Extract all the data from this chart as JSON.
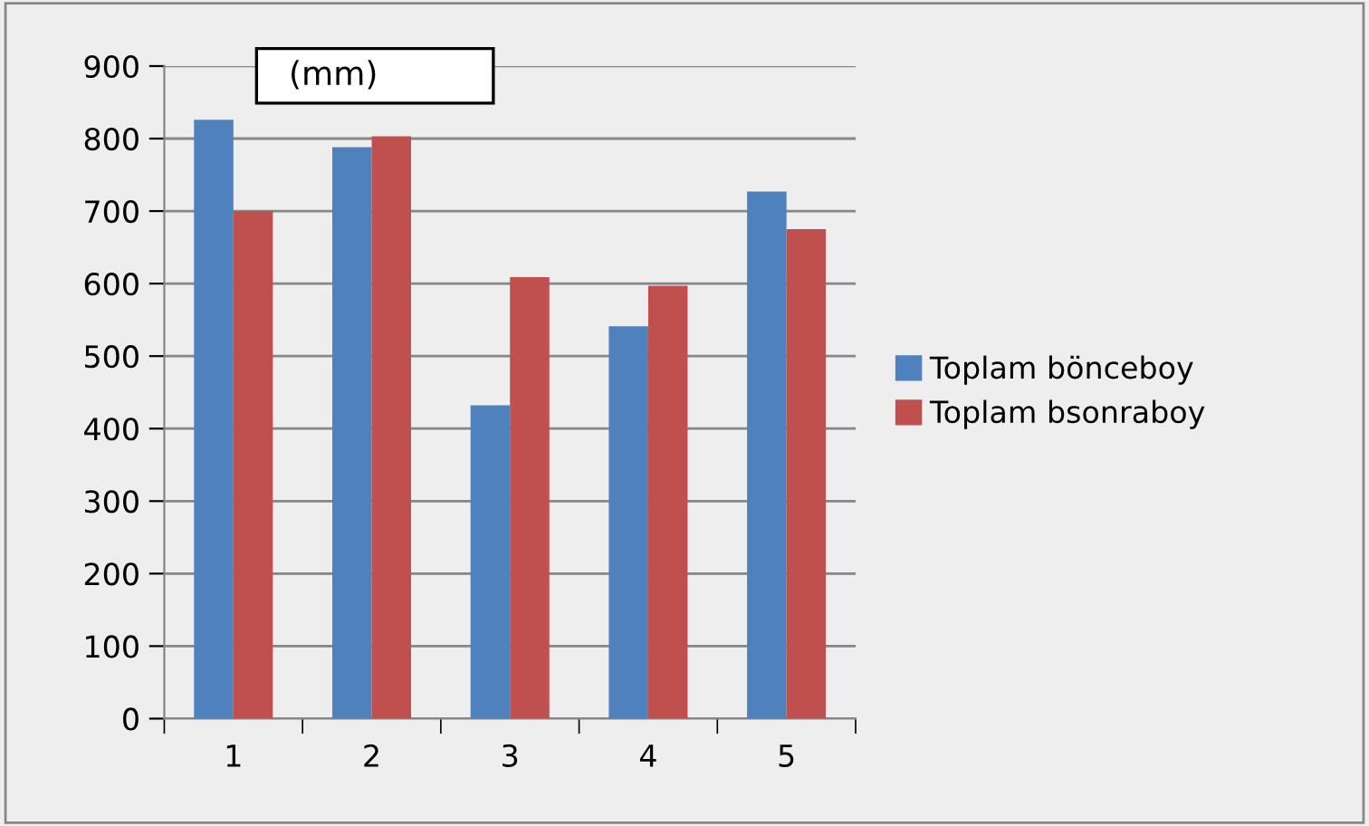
{
  "chart_data": {
    "type": "bar",
    "categories": [
      "1",
      "2",
      "3",
      "4",
      "5"
    ],
    "series": [
      {
        "name": "Toplam bönceboy",
        "color": "#4f81bd",
        "values": [
          826,
          788,
          432,
          541,
          727
        ]
      },
      {
        "name": "Toplam bsonraboy",
        "color": "#c0504d",
        "values": [
          700,
          803,
          609,
          597,
          675
        ]
      }
    ],
    "annotations": [
      "(mm)"
    ],
    "ylim": [
      0,
      900
    ],
    "yticks": [
      0,
      100,
      200,
      300,
      400,
      500,
      600,
      700,
      800,
      900
    ],
    "grid": "y",
    "legend": "right"
  }
}
